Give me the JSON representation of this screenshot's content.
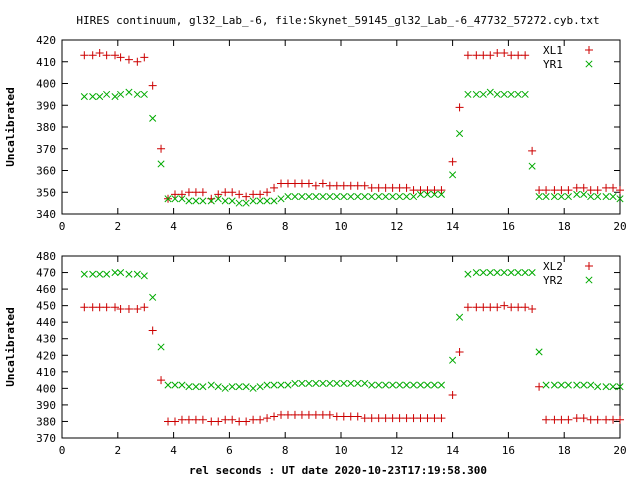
{
  "chart_data": {
    "type": "scatter",
    "title": "HIRES continuum, gl32_Lab_-6, file:Skynet_59145_gl32_Lab_-6_47732_57272.cyb.txt",
    "xlabel": "rel seconds : UT date 2020-10-23T17:19:58.300",
    "x_ticks": [
      "0",
      "2",
      "4",
      "6",
      "8",
      "10",
      "12",
      "14",
      "16",
      "18",
      "20"
    ],
    "xlim": [
      0,
      20
    ],
    "panels": [
      {
        "ylabel": "Uncalibrated",
        "ylim": [
          340,
          420
        ],
        "y_ticks": [
          "340",
          "350",
          "360",
          "370",
          "380",
          "390",
          "400",
          "410",
          "420"
        ],
        "series": [
          {
            "name": "XL1",
            "marker": "plus",
            "color": "#cc0000",
            "x": [
              0.8,
              1.1,
              1.35,
              1.6,
              1.9,
              2.1,
              2.4,
              2.7,
              2.95,
              3.25,
              3.55,
              3.8,
              4.05,
              4.3,
              4.55,
              4.8,
              5.05,
              5.35,
              5.6,
              5.85,
              6.1,
              6.35,
              6.6,
              6.85,
              7.1,
              7.35,
              7.6,
              7.85,
              8.1,
              8.35,
              8.6,
              8.85,
              9.1,
              9.35,
              9.6,
              9.85,
              10.1,
              10.35,
              10.6,
              10.85,
              11.1,
              11.35,
              11.6,
              11.85,
              12.1,
              12.35,
              12.6,
              12.85,
              13.1,
              13.35,
              13.6,
              14.0,
              14.25,
              14.55,
              14.85,
              15.1,
              15.35,
              15.6,
              15.85,
              16.1,
              16.35,
              16.6,
              16.85,
              17.1,
              17.35,
              17.65,
              17.9,
              18.15,
              18.45,
              18.7,
              18.95,
              19.2,
              19.5,
              19.75,
              20.0
            ],
            "y": [
              413,
              413,
              414,
              413,
              413,
              412,
              411,
              410,
              412,
              399,
              370,
              347,
              349,
              349,
              350,
              350,
              350,
              347,
              349,
              350,
              350,
              349,
              348,
              349,
              349,
              350,
              352,
              354,
              354,
              354,
              354,
              354,
              353,
              354,
              353,
              353,
              353,
              353,
              353,
              353,
              352,
              352,
              352,
              352,
              352,
              352,
              351,
              351,
              351,
              351,
              351,
              364,
              389,
              413,
              413,
              413,
              413,
              414,
              414,
              413,
              413,
              413,
              369,
              351,
              351,
              351,
              351,
              351,
              352,
              352,
              351,
              351,
              352,
              352,
              351
            ]
          },
          {
            "name": "YR1",
            "marker": "cross",
            "color": "#00aa00",
            "x": [
              0.8,
              1.1,
              1.35,
              1.6,
              1.9,
              2.1,
              2.4,
              2.7,
              2.95,
              3.25,
              3.55,
              3.8,
              4.05,
              4.3,
              4.55,
              4.8,
              5.05,
              5.35,
              5.6,
              5.85,
              6.1,
              6.35,
              6.6,
              6.85,
              7.1,
              7.35,
              7.6,
              7.85,
              8.1,
              8.35,
              8.6,
              8.85,
              9.1,
              9.35,
              9.6,
              9.85,
              10.1,
              10.35,
              10.6,
              10.85,
              11.1,
              11.35,
              11.6,
              11.85,
              12.1,
              12.35,
              12.6,
              12.85,
              13.1,
              13.35,
              13.6,
              14.0,
              14.25,
              14.55,
              14.85,
              15.1,
              15.35,
              15.6,
              15.85,
              16.1,
              16.35,
              16.6,
              16.85,
              17.1,
              17.35,
              17.65,
              17.9,
              18.15,
              18.45,
              18.7,
              18.95,
              19.2,
              19.5,
              19.75,
              20.0
            ],
            "y": [
              394,
              394,
              394,
              395,
              394,
              395,
              396,
              395,
              395,
              384,
              363,
              347,
              347,
              347,
              346,
              346,
              346,
              346,
              347,
              346,
              346,
              345,
              345,
              346,
              346,
              346,
              346,
              347,
              348,
              348,
              348,
              348,
              348,
              348,
              348,
              348,
              348,
              348,
              348,
              348,
              348,
              348,
              348,
              348,
              348,
              348,
              348,
              349,
              349,
              349,
              349,
              358,
              377,
              395,
              395,
              395,
              396,
              395,
              395,
              395,
              395,
              395,
              362,
              348,
              348,
              348,
              348,
              348,
              349,
              349,
              348,
              348,
              348,
              348,
              347
            ]
          }
        ]
      },
      {
        "ylabel": "Uncalibrated",
        "ylim": [
          370,
          480
        ],
        "y_ticks": [
          "370",
          "380",
          "390",
          "400",
          "410",
          "420",
          "430",
          "440",
          "450",
          "460",
          "470",
          "480"
        ],
        "series": [
          {
            "name": "XL2",
            "marker": "plus",
            "color": "#cc0000",
            "x": [
              0.8,
              1.1,
              1.35,
              1.6,
              1.9,
              2.1,
              2.4,
              2.7,
              2.95,
              3.25,
              3.55,
              3.8,
              4.05,
              4.3,
              4.55,
              4.8,
              5.05,
              5.35,
              5.6,
              5.85,
              6.1,
              6.35,
              6.6,
              6.85,
              7.1,
              7.35,
              7.6,
              7.85,
              8.1,
              8.35,
              8.6,
              8.85,
              9.1,
              9.35,
              9.6,
              9.85,
              10.1,
              10.35,
              10.6,
              10.85,
              11.1,
              11.35,
              11.6,
              11.85,
              12.1,
              12.35,
              12.6,
              12.85,
              13.1,
              13.35,
              13.6,
              14.0,
              14.25,
              14.55,
              14.85,
              15.1,
              15.35,
              15.6,
              15.85,
              16.1,
              16.35,
              16.6,
              16.85,
              17.1,
              17.35,
              17.65,
              17.9,
              18.15,
              18.45,
              18.7,
              18.95,
              19.2,
              19.5,
              19.75,
              20.0
            ],
            "y": [
              449,
              449,
              449,
              449,
              449,
              448,
              448,
              448,
              449,
              435,
              405,
              380,
              380,
              381,
              381,
              381,
              381,
              380,
              380,
              381,
              381,
              380,
              380,
              381,
              381,
              382,
              383,
              384,
              384,
              384,
              384,
              384,
              384,
              384,
              384,
              383,
              383,
              383,
              383,
              382,
              382,
              382,
              382,
              382,
              382,
              382,
              382,
              382,
              382,
              382,
              382,
              396,
              422,
              449,
              449,
              449,
              449,
              449,
              450,
              449,
              449,
              449,
              448,
              401,
              381,
              381,
              381,
              381,
              382,
              382,
              381,
              381,
              381,
              381,
              381
            ]
          },
          {
            "name": "YR2",
            "marker": "cross",
            "color": "#00aa00",
            "x": [
              0.8,
              1.1,
              1.35,
              1.6,
              1.9,
              2.1,
              2.4,
              2.7,
              2.95,
              3.25,
              3.55,
              3.8,
              4.05,
              4.3,
              4.55,
              4.8,
              5.05,
              5.35,
              5.6,
              5.85,
              6.1,
              6.35,
              6.6,
              6.85,
              7.1,
              7.35,
              7.6,
              7.85,
              8.1,
              8.35,
              8.6,
              8.85,
              9.1,
              9.35,
              9.6,
              9.85,
              10.1,
              10.35,
              10.6,
              10.85,
              11.1,
              11.35,
              11.6,
              11.85,
              12.1,
              12.35,
              12.6,
              12.85,
              13.1,
              13.35,
              13.6,
              14.0,
              14.25,
              14.55,
              14.85,
              15.1,
              15.35,
              15.6,
              15.85,
              16.1,
              16.35,
              16.6,
              16.85,
              17.1,
              17.35,
              17.65,
              17.9,
              18.15,
              18.45,
              18.7,
              18.95,
              19.2,
              19.5,
              19.75,
              20.0
            ],
            "y": [
              469,
              469,
              469,
              469,
              470,
              470,
              469,
              469,
              468,
              455,
              425,
              402,
              402,
              402,
              401,
              401,
              401,
              402,
              401,
              400,
              401,
              401,
              401,
              400,
              401,
              402,
              402,
              402,
              402,
              403,
              403,
              403,
              403,
              403,
              403,
              403,
              403,
              403,
              403,
              403,
              402,
              402,
              402,
              402,
              402,
              402,
              402,
              402,
              402,
              402,
              402,
              417,
              443,
              469,
              470,
              470,
              470,
              470,
              470,
              470,
              470,
              470,
              470,
              422,
              402,
              402,
              402,
              402,
              402,
              402,
              402,
              401,
              401,
              401,
              401
            ]
          }
        ]
      }
    ]
  }
}
